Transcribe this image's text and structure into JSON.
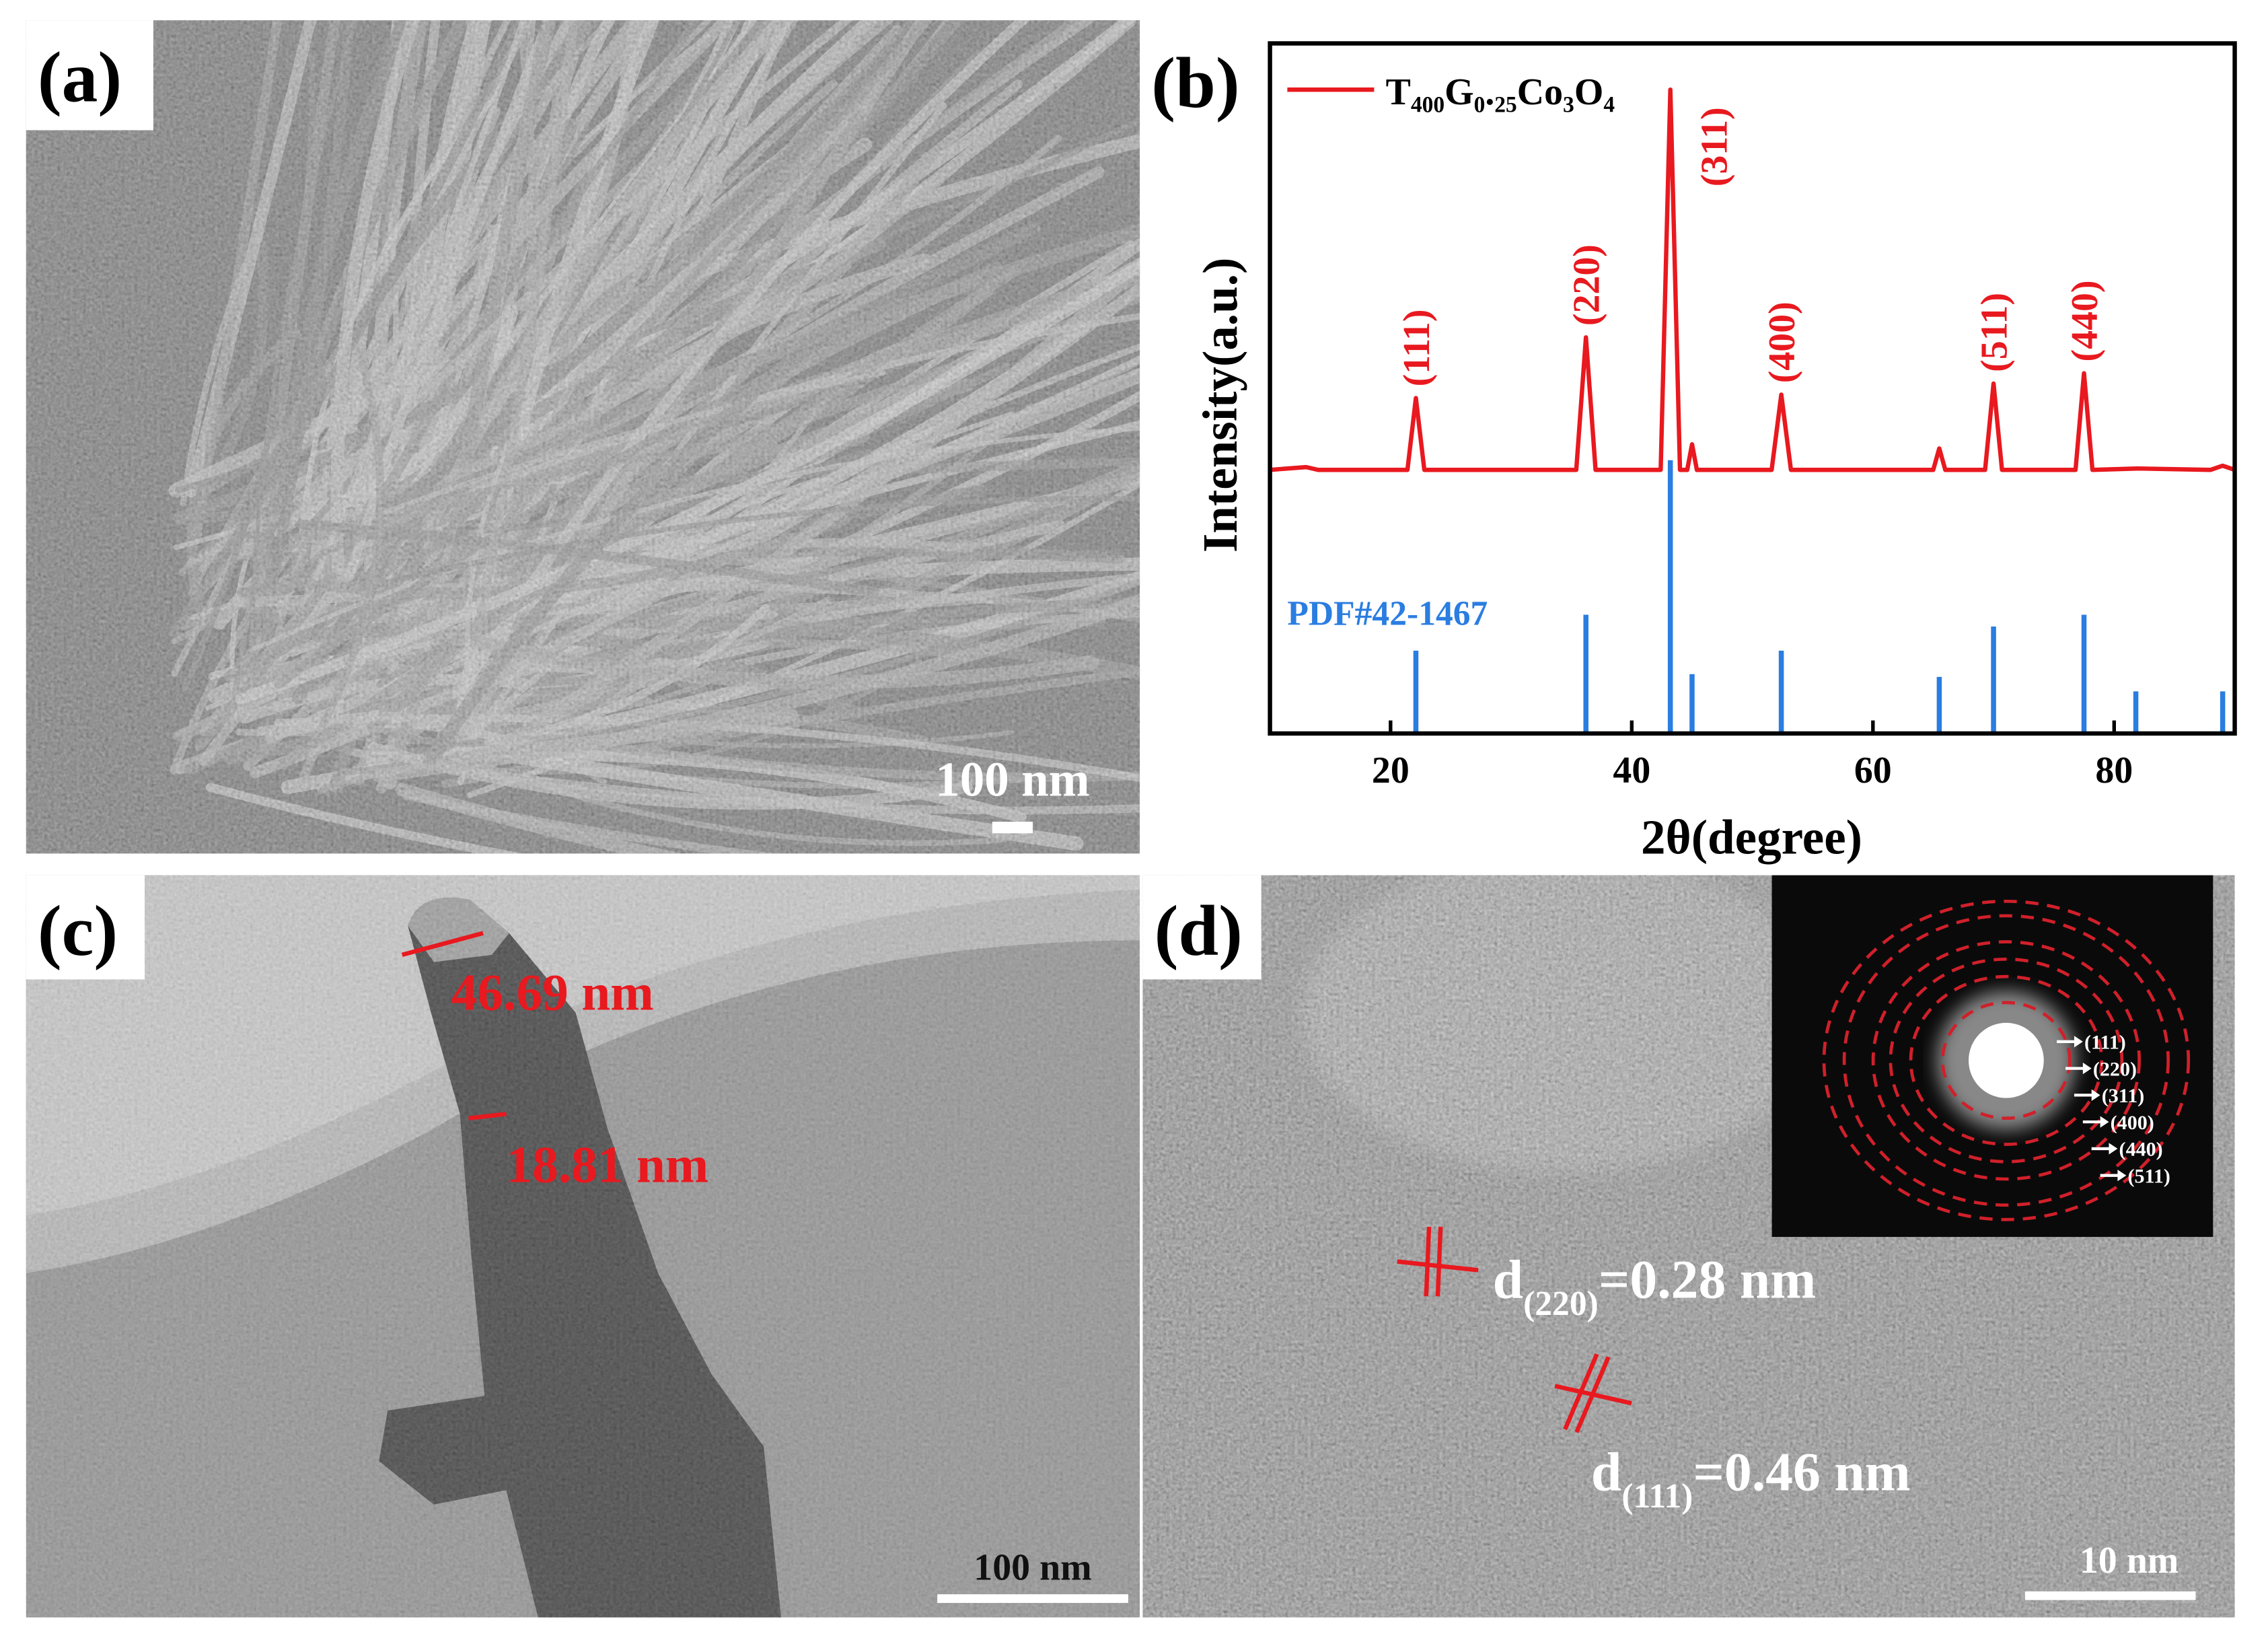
{
  "panels": {
    "a": {
      "label": "(a)",
      "scale_bar": "100 nm"
    },
    "c": {
      "label": "(c)",
      "measurements": [
        "46.69 nm",
        "18.81 nm"
      ],
      "scale_bar": "100 nm"
    },
    "d": {
      "label": "(d)",
      "spacings": [
        {
          "symbol": "d",
          "index": "(220)",
          "value": "=0.28 nm"
        },
        {
          "symbol": "d",
          "index": "(111)",
          "value": "=0.46 nm"
        }
      ],
      "inset_labels": [
        "(111)",
        "(220)",
        "(311)",
        "(400)",
        "(440)",
        "(511)"
      ],
      "scale_bar": "10 nm"
    }
  },
  "chart_data": {
    "type": "line",
    "panel_label": "(b)",
    "xlabel": "2θ(degree)",
    "ylabel": "Intensity(a.u.)",
    "xlim": [
      10,
      90
    ],
    "ylim": [
      0,
      100
    ],
    "xticks": [
      20,
      40,
      60,
      80
    ],
    "series": [
      {
        "name": "T₄₀₀G₀.₂₅Co₃O₄",
        "color": "#e8191f",
        "style": "line",
        "x": [
          10,
          13,
          14,
          21.4,
          22.1,
          22.8,
          35.4,
          36.2,
          37.0,
          42.4,
          43.2,
          44.0,
          44.6,
          45.0,
          45.4,
          51.6,
          52.4,
          53.2,
          65.0,
          65.5,
          66.0,
          69.3,
          70.0,
          70.7,
          76.8,
          77.5,
          78.2,
          82,
          88,
          89,
          90
        ],
        "values": [
          38.2,
          38.6,
          38.2,
          38.2,
          48.6,
          38.2,
          38.2,
          57.4,
          38.2,
          38.2,
          93.3,
          38.2,
          38.2,
          41.9,
          38.2,
          38.2,
          49.1,
          38.2,
          38.2,
          41.3,
          38.2,
          38.2,
          50.7,
          38.2,
          38.2,
          52.2,
          38.2,
          38.4,
          38.2,
          38.8,
          38.2
        ]
      },
      {
        "name": "PDF#42-1467",
        "color": "#2a7de1",
        "style": "stem",
        "x": [
          22.1,
          36.2,
          43.2,
          45.0,
          52.4,
          65.5,
          70.0,
          77.5,
          81.8,
          89.0
        ],
        "values": [
          12,
          17.2,
          39.6,
          8.6,
          12,
          8.2,
          15.5,
          17.2,
          6.1,
          6.1
        ]
      }
    ],
    "annotations": [
      {
        "text": "(111)",
        "x": 22.1
      },
      {
        "text": "(220)",
        "x": 36.2
      },
      {
        "text": "(311)",
        "x": 43.2
      },
      {
        "text": "(400)",
        "x": 52.4
      },
      {
        "text": "(511)",
        "x": 70.0
      },
      {
        "text": "(440)",
        "x": 77.5
      }
    ]
  }
}
